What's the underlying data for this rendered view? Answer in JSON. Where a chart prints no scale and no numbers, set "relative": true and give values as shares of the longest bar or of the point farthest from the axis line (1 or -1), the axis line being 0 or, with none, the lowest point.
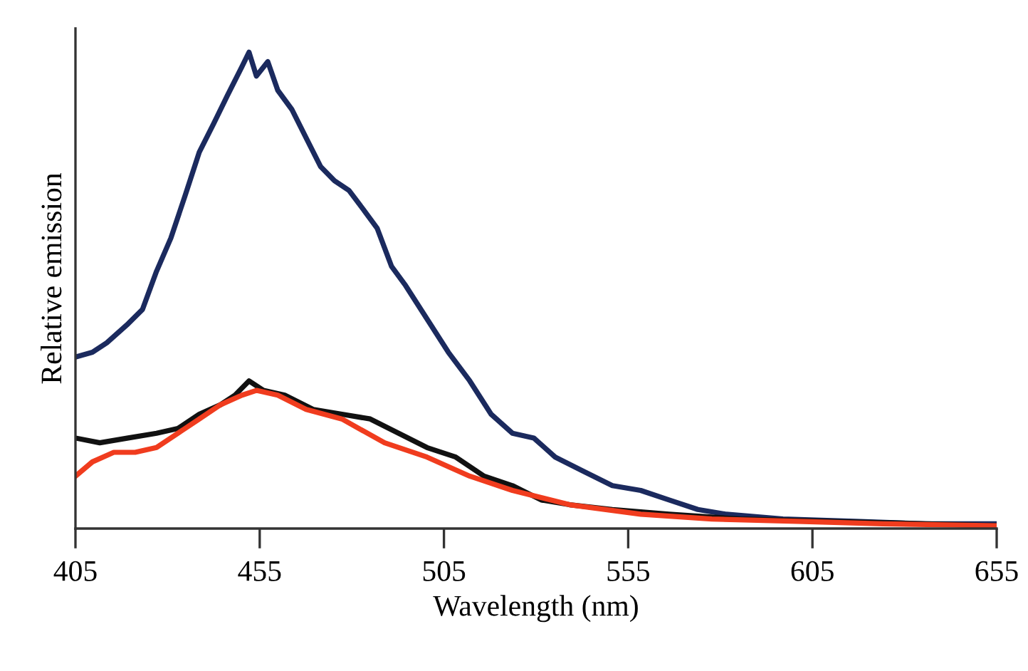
{
  "chart_data": {
    "type": "line",
    "relative": true,
    "xlabel": "Wavelength (nm)",
    "ylabel": "Relative emission",
    "xlim": [
      405,
      655
    ],
    "xticks": [
      405,
      455,
      505,
      555,
      605,
      655
    ],
    "marker": "none",
    "line_style": "solid",
    "series": [
      {
        "color": "#1b2a5e",
        "x": [
          405,
          409.6,
          413.5,
          419.3,
          423.2,
          427,
          430.9,
          434.8,
          438.6,
          442.5,
          446.3,
          450.2,
          452.1,
          454.1,
          457.2,
          459.9,
          463.7,
          467.6,
          471.5,
          475.3,
          479.2,
          483.1,
          486.9,
          490.8,
          494.6,
          500.4,
          506.2,
          512,
          517.8,
          523.6,
          529.4,
          535.2,
          542.9,
          550.7,
          558.4,
          566.1,
          573.9,
          581.6,
          597,
          616.4,
          635.7,
          655
        ],
        "values": [
          0.36,
          0.37,
          0.39,
          0.43,
          0.46,
          0.54,
          0.61,
          0.7,
          0.79,
          0.85,
          0.91,
          0.97,
          1.0,
          0.95,
          0.98,
          0.92,
          0.88,
          0.82,
          0.76,
          0.73,
          0.71,
          0.67,
          0.63,
          0.55,
          0.51,
          0.44,
          0.37,
          0.31,
          0.24,
          0.2,
          0.19,
          0.15,
          0.12,
          0.09,
          0.08,
          0.06,
          0.04,
          0.03,
          0.02,
          0.015,
          0.01,
          0.01
        ]
      },
      {
        "color": "#111111",
        "x": [
          405,
          411.6,
          419.3,
          427,
          432.8,
          438.6,
          444.4,
          448.3,
          452.1,
          456,
          461.8,
          469.5,
          477.3,
          485,
          492.7,
          500.4,
          508.2,
          515.9,
          523.6,
          531.4,
          539.1,
          550.7,
          566.1,
          585.4,
          608.6,
          635.7,
          655
        ],
        "values": [
          0.19,
          0.18,
          0.19,
          0.2,
          0.21,
          0.24,
          0.26,
          0.28,
          0.31,
          0.29,
          0.28,
          0.25,
          0.24,
          0.23,
          0.2,
          0.17,
          0.15,
          0.11,
          0.09,
          0.06,
          0.05,
          0.04,
          0.03,
          0.02,
          0.015,
          0.01,
          0.006
        ]
      },
      {
        "color": "#f03c1e",
        "x": [
          405,
          409.6,
          415.4,
          421.2,
          427,
          432.8,
          438.6,
          444.4,
          450.2,
          454.1,
          459.9,
          467.6,
          477.3,
          488.9,
          500.4,
          512,
          523.6,
          539.1,
          558.4,
          577.7,
          600.9,
          624.1,
          655
        ],
        "values": [
          0.11,
          0.14,
          0.16,
          0.16,
          0.17,
          0.2,
          0.23,
          0.26,
          0.28,
          0.29,
          0.28,
          0.25,
          0.23,
          0.18,
          0.15,
          0.11,
          0.08,
          0.05,
          0.03,
          0.02,
          0.015,
          0.01,
          0.006
        ]
      }
    ]
  }
}
